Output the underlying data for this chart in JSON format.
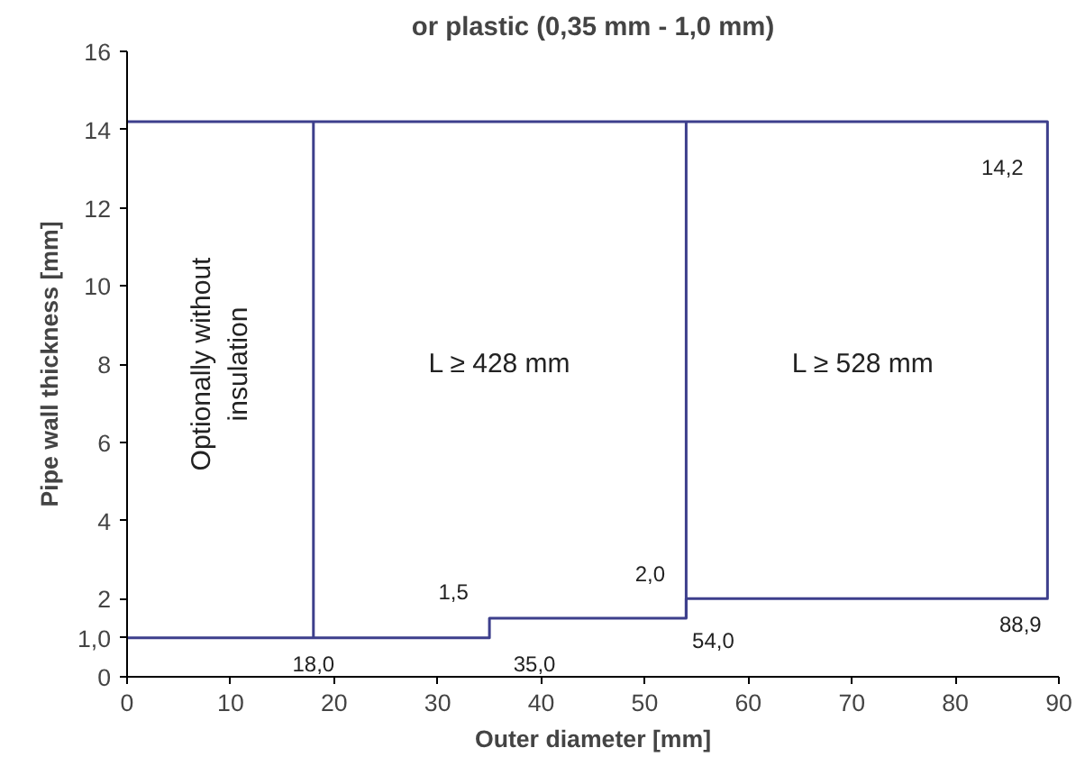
{
  "chart_data": {
    "type": "line",
    "title": "or plastic (0,35 mm - 1,0 mm)",
    "xlabel": "Outer diameter [mm]",
    "ylabel": "Pipe wall thickness [mm]",
    "series": [
      {
        "color": "#3d3f8c",
        "x": [
          0,
          35,
          35,
          54,
          54,
          88.9,
          88.9,
          0
        ],
        "values": [
          1,
          1,
          1.5,
          1.5,
          2,
          2,
          14.2,
          14.2
        ]
      },
      {
        "color": "#3d3f8c",
        "x": [
          18,
          18
        ],
        "values": [
          1,
          14.2
        ]
      },
      {
        "color": "#3d3f8c",
        "x": [
          54,
          54
        ],
        "values": [
          1.5,
          14.2
        ]
      }
    ],
    "annotations": [
      "Optionally without insulation",
      "L ≥ 428 mm",
      "L ≥ 528 mm",
      {
        "text": "1,5",
        "x": 35,
        "y": 1.5
      },
      {
        "text": "2,0",
        "x": 54,
        "y": 2
      },
      {
        "text": "14,2",
        "x": 88.9,
        "y": 14.2
      },
      {
        "text": "18,0",
        "x": 18,
        "y": 1
      },
      {
        "text": "35,0",
        "x": 35,
        "y": 1
      },
      {
        "text": "54,0",
        "x": 54,
        "y": 1.5
      },
      {
        "text": "88,9",
        "x": 88.9,
        "y": 2
      }
    ],
    "xlim": [
      0,
      90
    ],
    "ylim": [
      0,
      16
    ],
    "xticks": [
      0,
      10,
      20,
      30,
      40,
      50,
      60,
      70,
      80,
      90
    ],
    "yticks": [
      0,
      {
        "value": 1,
        "label": "1,0"
      },
      2,
      4,
      6,
      8,
      10,
      12,
      14,
      16
    ],
    "grid": false,
    "marker": "none",
    "line_style": "solid"
  }
}
